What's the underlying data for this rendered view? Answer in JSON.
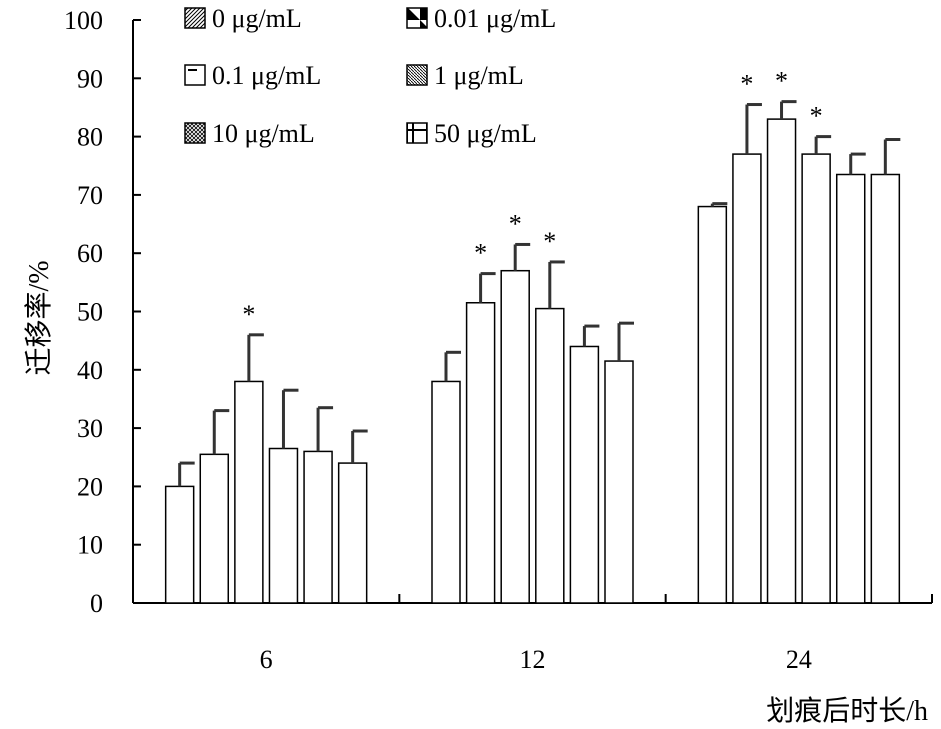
{
  "chart_data": {
    "type": "bar",
    "title": "",
    "xlabel": "划痕后时长/h",
    "ylabel": "迁移率/%",
    "ylim": [
      0,
      100
    ],
    "yticks": [
      0,
      10,
      20,
      30,
      40,
      50,
      60,
      70,
      80,
      90,
      100
    ],
    "categories": [
      "6",
      "12",
      "24"
    ],
    "legend_position": "top",
    "grid": false,
    "significance_marker": "*",
    "series": [
      {
        "name": "0 μg/mL",
        "pattern": "diagonal-hatch",
        "values": [
          20.0,
          38.0,
          68.0
        ],
        "errors": [
          4.0,
          5.0,
          0.5
        ],
        "significant": [
          false,
          false,
          false
        ]
      },
      {
        "name": "0.01 μg/mL",
        "pattern": "back-diagonal",
        "values": [
          25.5,
          51.5,
          77.0
        ],
        "errors": [
          7.5,
          5.0,
          8.5
        ],
        "significant": [
          false,
          true,
          true
        ]
      },
      {
        "name": "0.1 μg/mL",
        "pattern": "horizontal-dash",
        "values": [
          38.0,
          57.0,
          83.0
        ],
        "errors": [
          8.0,
          4.5,
          3.0
        ],
        "significant": [
          true,
          true,
          true
        ]
      },
      {
        "name": "1 μg/mL",
        "pattern": "fine-diagonal",
        "values": [
          26.5,
          50.5,
          77.0
        ],
        "errors": [
          10.0,
          8.0,
          3.0
        ],
        "significant": [
          false,
          true,
          true
        ]
      },
      {
        "name": "10 μg/mL",
        "pattern": "crosshatch",
        "values": [
          26.0,
          44.0,
          73.5
        ],
        "errors": [
          7.5,
          3.5,
          3.5
        ],
        "significant": [
          false,
          false,
          false
        ]
      },
      {
        "name": "50 μg/mL",
        "pattern": "grid",
        "values": [
          24.0,
          41.5,
          73.5
        ],
        "errors": [
          5.5,
          6.5,
          6.0
        ],
        "significant": [
          false,
          false,
          false
        ]
      }
    ]
  }
}
